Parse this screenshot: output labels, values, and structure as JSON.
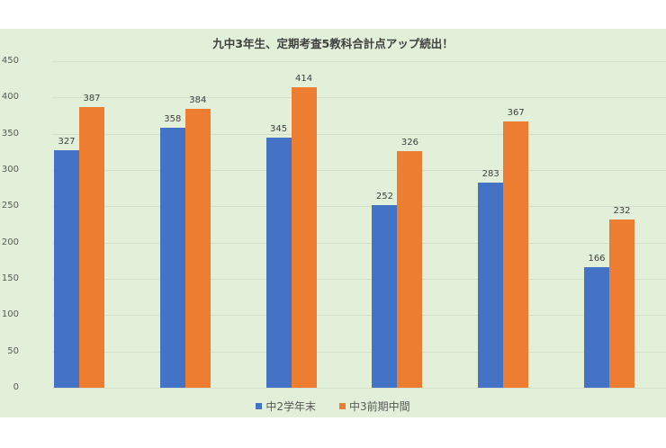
{
  "colors": {
    "series1": "#4472c4",
    "series2": "#ed7d31",
    "background": "#e2efd9",
    "grid": "#d4dfcc"
  },
  "chart_data": {
    "type": "bar",
    "title": "九中3年生、定期考査5教科合計点アップ続出！",
    "xlabel": "",
    "ylabel": "",
    "categories": [
      "",
      "",
      "",
      "",
      "",
      ""
    ],
    "series": [
      {
        "name": "中2学年末",
        "values": [
          327,
          358,
          345,
          252,
          283,
          166
        ]
      },
      {
        "name": "中3前期中間",
        "values": [
          387,
          384,
          414,
          326,
          367,
          232
        ]
      }
    ],
    "ylim": [
      0,
      450
    ],
    "yticks": [
      0,
      50,
      100,
      150,
      200,
      250,
      300,
      350,
      400,
      450
    ],
    "grid": true,
    "legend_position": "bottom",
    "data_labels": true
  }
}
